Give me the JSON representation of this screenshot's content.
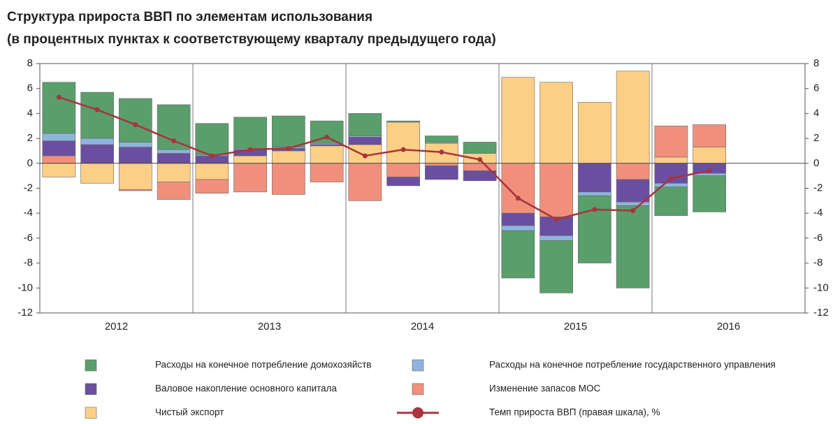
{
  "chart_data": {
    "type": "bar",
    "title": "Структура прироста ВВП по элементам использования",
    "subtitle": "(в процентных пунктах к соответствующему кварталу предыдущего года)",
    "categories": [
      null,
      null,
      null,
      null,
      null,
      null,
      null,
      null,
      null,
      null,
      null,
      null,
      null,
      null,
      null,
      null,
      null,
      null
    ],
    "x_labels": [
      "2012",
      "2013",
      "2014",
      "2015",
      "2016"
    ],
    "ylim": [
      -12,
      8
    ],
    "yticks": [
      -12,
      -10,
      -8,
      -6,
      -4,
      -2,
      0,
      2,
      4,
      6,
      8
    ],
    "y2lim": [
      -12,
      8
    ],
    "y2ticks": [
      -12,
      -10,
      -8,
      -6,
      -4,
      -2,
      0,
      2,
      4,
      6,
      8
    ],
    "series": [
      {
        "name": "Чистый экспорт",
        "color": "#fccf86",
        "values": [
          -1.1,
          -1.6,
          -2.1,
          -1.5,
          -1.3,
          0.6,
          1.0,
          1.4,
          1.5,
          3.3,
          1.6,
          0.8,
          6.9,
          6.5,
          4.9,
          7.4,
          0.5,
          1.3
        ]
      },
      {
        "name": "Изменение запасов МОС",
        "color": "#f0907c",
        "values": [
          0.6,
          0.0,
          -0.1,
          -1.4,
          -1.1,
          -2.3,
          -2.5,
          -1.5,
          -3.0,
          -1.1,
          -0.2,
          -0.6,
          -4.0,
          -4.3,
          0.0,
          -1.3,
          2.5,
          1.8
        ]
      },
      {
        "name": "Валовое накопление основного капитала",
        "color": "#6a4fa0",
        "values": [
          1.2,
          1.5,
          1.3,
          0.8,
          0.6,
          0.5,
          0.2,
          0.1,
          0.6,
          -0.7,
          -1.1,
          -0.8,
          -1.0,
          -1.5,
          -2.3,
          -1.8,
          -1.6,
          -0.8
        ]
      },
      {
        "name": "Расходы на конечное потребление государственного управления",
        "color": "#8fb4dc",
        "values": [
          0.6,
          0.5,
          0.4,
          0.3,
          0.1,
          0.1,
          0.1,
          0.1,
          0.1,
          0.0,
          0.1,
          0.0,
          -0.4,
          -0.4,
          -0.3,
          -0.3,
          -0.3,
          -0.2
        ]
      },
      {
        "name": "Расходы на конечное потребление домохозяйств",
        "color": "#5a9e6b",
        "values": [
          4.1,
          3.7,
          3.5,
          3.6,
          2.5,
          2.5,
          2.5,
          1.8,
          1.8,
          0.1,
          0.5,
          0.9,
          -3.8,
          -4.2,
          -5.4,
          -6.6,
          -2.3,
          -2.9
        ]
      },
      {
        "name": "Темп прироста ВВП (правая шкала), %",
        "color": "#a8343c",
        "type": "line",
        "axis": "y2",
        "values": [
          5.3,
          4.3,
          3.1,
          1.8,
          0.6,
          1.1,
          1.2,
          2.1,
          0.6,
          1.1,
          0.9,
          0.3,
          -2.8,
          -4.5,
          -3.7,
          -3.8,
          -1.2,
          -0.6
        ]
      }
    ]
  }
}
